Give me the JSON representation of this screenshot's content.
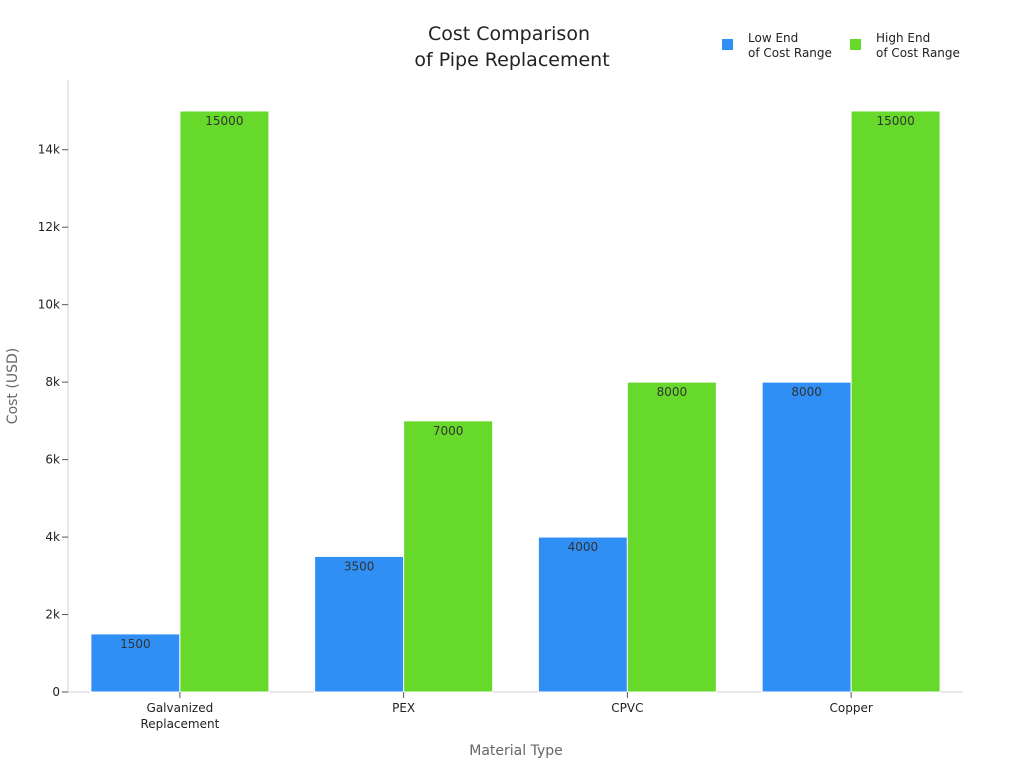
{
  "chart_data": {
    "type": "bar",
    "title": [
      "Cost Comparison",
      "of Pipe Replacement"
    ],
    "xlabel": "Material Type",
    "ylabel": "Cost (USD)",
    "categories": [
      [
        "Galvanized",
        "Replacement"
      ],
      [
        "PEX"
      ],
      [
        "CPVC"
      ],
      [
        "Copper"
      ]
    ],
    "series": [
      {
        "name": [
          "Low End",
          "of Cost Range"
        ],
        "color": "#2f8ff5",
        "values": [
          1500,
          3500,
          4000,
          8000
        ]
      },
      {
        "name": [
          "High End",
          "of Cost Range"
        ],
        "color": "#66d92a",
        "values": [
          15000,
          7000,
          8000,
          15000
        ]
      }
    ],
    "ylim": [
      0,
      15800
    ],
    "yticks": [
      0,
      2000,
      4000,
      6000,
      8000,
      10000,
      12000,
      14000
    ],
    "ytick_labels": [
      "0",
      "2k",
      "4k",
      "6k",
      "8k",
      "10k",
      "12k",
      "14k"
    ],
    "grid": false,
    "legend": "top-right"
  }
}
